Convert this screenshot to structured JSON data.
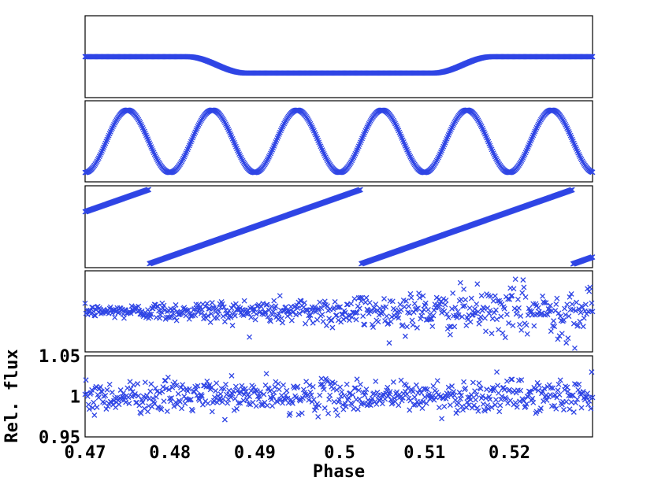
{
  "chart_data": {
    "type": "scatter",
    "marker": "x",
    "color": "#2f45e5",
    "xlabel": "Phase",
    "ylabel": "Rel. flux",
    "xlim": [
      0.47,
      0.5298
    ],
    "x_ticks": [
      "0.47",
      "0.48",
      "0.49",
      "0.5",
      "0.51",
      "0.52"
    ],
    "x_tick_values": [
      0.47,
      0.48,
      0.49,
      0.5,
      0.51,
      0.52
    ],
    "y_ticks": [
      "0.95",
      "1",
      "1.05"
    ],
    "y_tick_values": [
      0.95,
      1.0,
      1.05
    ],
    "panels": [
      {
        "name": "transit",
        "kind": "transit",
        "ylim": [
          0.9,
          1.1
        ],
        "baseline": 1.0,
        "depth": 0.04,
        "ingress": [
          0.482,
          0.489
        ],
        "egress": [
          0.511,
          0.518
        ],
        "n_points": 600
      },
      {
        "name": "sinusoid",
        "kind": "sine",
        "ylim": [
          -1.3,
          1.3
        ],
        "amplitude": 1.0,
        "period": 0.01,
        "phase_zero": 0.4725,
        "n_points": 600
      },
      {
        "name": "sawtooth",
        "kind": "sawtooth",
        "ylim": [
          -1.1,
          1.1
        ],
        "period": 0.025,
        "wrap_at": 0.4775,
        "y_at_start": 0.08,
        "n_points": 600
      },
      {
        "name": "noise-modulated",
        "kind": "noise",
        "ylim": [
          -3.5,
          3.5
        ],
        "noise_scale": 1.0,
        "n_points": 600
      },
      {
        "name": "noise-axis",
        "kind": "noise",
        "ylim": [
          0.95,
          1.05
        ],
        "noise_scale": 0.01,
        "n_points": 600,
        "shows_y_axis": true
      }
    ]
  }
}
